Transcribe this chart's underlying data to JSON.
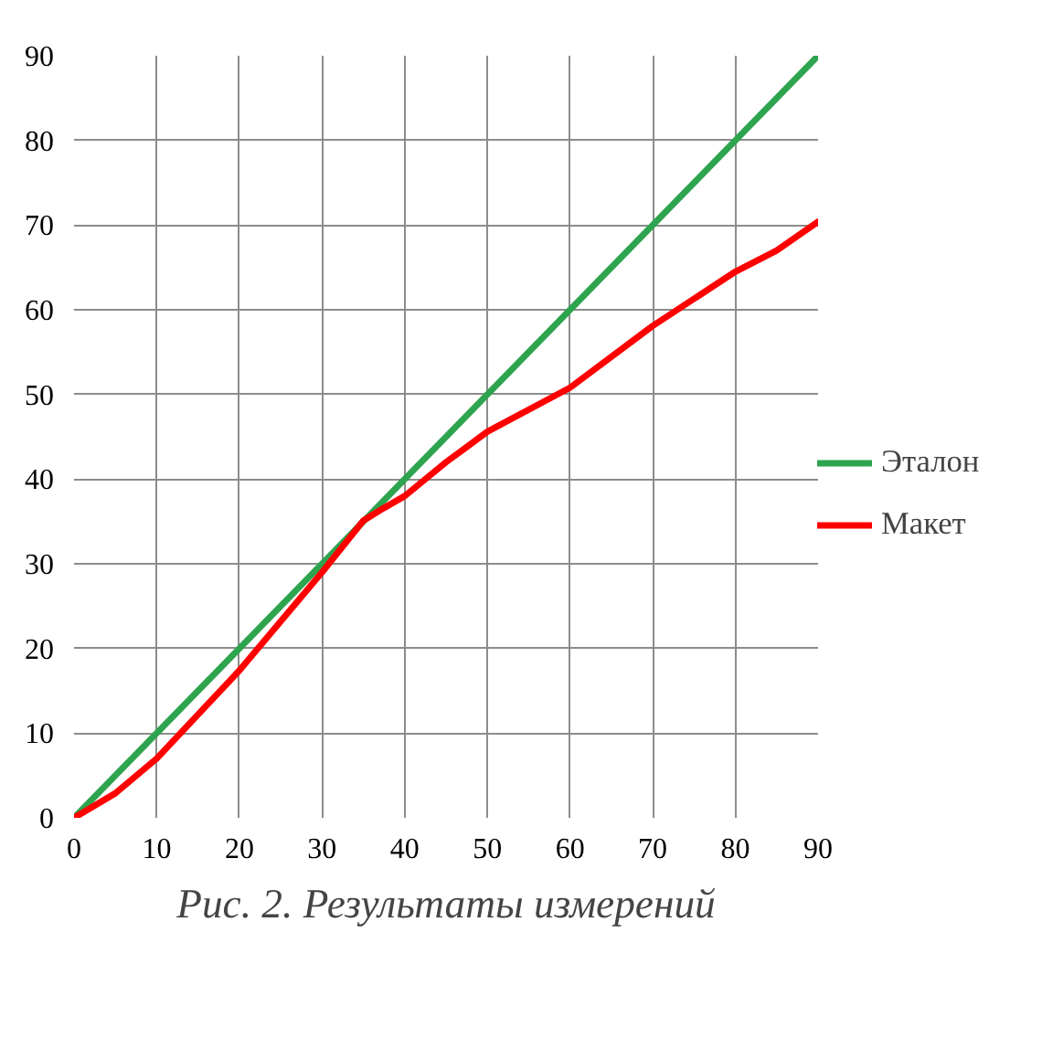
{
  "chart_data": {
    "type": "line",
    "title": "Рис. 2. Результаты измерений",
    "xlim": [
      0,
      90
    ],
    "ylim": [
      0,
      90
    ],
    "xticks": [
      0,
      10,
      20,
      30,
      40,
      50,
      60,
      70,
      80,
      90
    ],
    "yticks": [
      0,
      10,
      20,
      30,
      40,
      50,
      60,
      70,
      80,
      90
    ],
    "grid": true,
    "legend": "right",
    "line_style": "solid",
    "marker": "none",
    "series": [
      {
        "name": "Эталон",
        "color": "#2ea44f",
        "x": [
          0,
          90
        ],
        "values": [
          0,
          90
        ]
      },
      {
        "name": "Макет",
        "color": "#ff0000",
        "x": [
          0,
          5,
          10,
          20,
          30,
          35,
          37.5,
          40,
          45,
          50,
          60,
          70,
          80,
          85,
          90
        ],
        "values": [
          0,
          2.9,
          7,
          17.4,
          29,
          35.1,
          36.6,
          38,
          42,
          45.6,
          50.8,
          58.1,
          64.5,
          67,
          70.4
        ]
      }
    ]
  }
}
